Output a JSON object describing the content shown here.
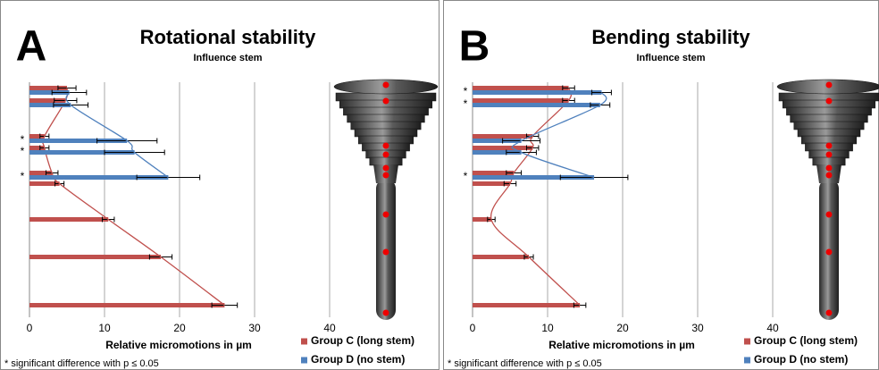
{
  "chart_data": [
    {
      "type": "bar",
      "orientation": "horizontal",
      "panel_label": "A",
      "title": "Rotational stability",
      "subtitle": "Influence stem",
      "x_label": "Relative micromotions in µm",
      "categories": [
        null,
        null,
        null,
        null,
        null,
        null,
        null,
        null,
        null
      ],
      "markers": [
        null,
        null,
        "*",
        "*",
        "*",
        null,
        null,
        null,
        null
      ],
      "series": [
        {
          "name": "Group C (long stem)",
          "color": "#c0504d",
          "values": [
            5.0,
            4.8,
            2.0,
            2.0,
            3.0,
            4.0,
            10.5,
            17.5,
            26.0
          ],
          "errors": [
            1.2,
            1.5,
            0.6,
            0.6,
            0.8,
            0.6,
            0.8,
            1.5,
            1.7
          ]
        },
        {
          "name": "Group D (no stem)",
          "color": "#4f81bd",
          "values": [
            5.3,
            5.5,
            13.0,
            14.0,
            18.5,
            null,
            null,
            null,
            null
          ],
          "errors": [
            2.3,
            2.3,
            4.0,
            4.0,
            4.2,
            null,
            null,
            null,
            null
          ]
        }
      ],
      "xlim": [
        0,
        40
      ],
      "xticks": [
        0,
        10,
        20,
        30,
        40
      ],
      "grid": true,
      "footnote": "* significant difference with p ≤ 0.05"
    },
    {
      "type": "bar",
      "orientation": "horizontal",
      "panel_label": "B",
      "title": "Bending stability",
      "subtitle": "Influence stem",
      "x_label": "Relative micromotions in µm",
      "categories": [
        null,
        null,
        null,
        null,
        null,
        null,
        null,
        null,
        null
      ],
      "markers": [
        "*",
        "*",
        null,
        null,
        "*",
        null,
        null,
        null,
        null
      ],
      "series": [
        {
          "name": "Group C (long stem)",
          "color": "#c0504d",
          "values": [
            12.8,
            12.8,
            8.0,
            8.0,
            5.5,
            5.0,
            2.5,
            7.5,
            14.3
          ],
          "errors": [
            0.8,
            0.8,
            0.8,
            0.8,
            1.0,
            0.8,
            0.5,
            0.6,
            0.8
          ]
        },
        {
          "name": "Group D (no stem)",
          "color": "#4f81bd",
          "values": [
            17.2,
            17.0,
            6.5,
            6.5,
            16.2,
            null,
            null,
            null,
            null
          ],
          "errors": [
            1.3,
            1.3,
            2.5,
            2.0,
            4.5,
            null,
            null,
            null,
            null
          ]
        }
      ],
      "xlim": [
        0,
        40
      ],
      "xticks": [
        0,
        10,
        20,
        30,
        40
      ],
      "grid": true,
      "footnote": "* significant difference with p ≤ 0.05"
    }
  ]
}
